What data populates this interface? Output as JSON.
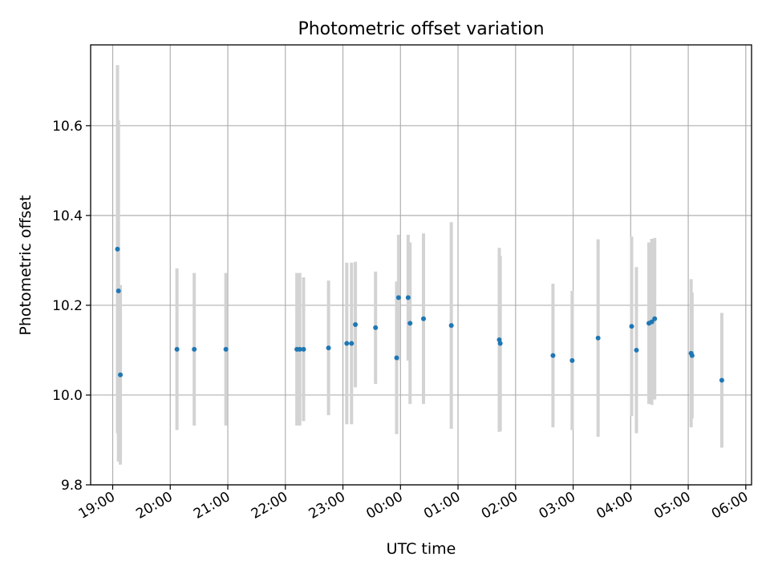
{
  "chart_data": {
    "type": "scatter",
    "title": "Photometric offset variation",
    "xlabel": "UTC time",
    "ylabel": "Photometric offset",
    "x_axis_type": "time",
    "x_start_date": "2024-01-01",
    "xlim": [
      "2024-01-01T18:37",
      "2024-01-02T06:06"
    ],
    "ylim": [
      9.8,
      10.78
    ],
    "x_ticks": [
      {
        "time": "2024-01-01T19:00",
        "label": "19:00"
      },
      {
        "time": "2024-01-01T20:00",
        "label": "20:00"
      },
      {
        "time": "2024-01-01T21:00",
        "label": "21:00"
      },
      {
        "time": "2024-01-01T22:00",
        "label": "22:00"
      },
      {
        "time": "2024-01-01T23:00",
        "label": "23:00"
      },
      {
        "time": "2024-01-02T00:00",
        "label": "00:00"
      },
      {
        "time": "2024-01-02T01:00",
        "label": "01:00"
      },
      {
        "time": "2024-01-02T02:00",
        "label": "02:00"
      },
      {
        "time": "2024-01-02T03:00",
        "label": "03:00"
      },
      {
        "time": "2024-01-02T04:00",
        "label": "04:00"
      },
      {
        "time": "2024-01-02T05:00",
        "label": "05:00"
      },
      {
        "time": "2024-01-02T06:00",
        "label": "06:00"
      }
    ],
    "y_ticks": [
      9.8,
      10.0,
      10.2,
      10.4,
      10.6
    ],
    "y_tick_labels": [
      "9.8",
      "10.0",
      "10.2",
      "10.4",
      "10.6"
    ],
    "grid": true,
    "legend": "none",
    "colors": {
      "point": "#1f77b4",
      "errorbar": "#d3d3d3",
      "grid": "#b0b0b0"
    },
    "points": [
      {
        "time": "2024-01-01T19:05",
        "y": 10.325,
        "err": 0.41
      },
      {
        "time": "2024-01-01T19:06",
        "y": 10.232,
        "err": 0.38
      },
      {
        "time": "2024-01-01T19:08",
        "y": 10.045,
        "err": 0.2
      },
      {
        "time": "2024-01-01T20:07",
        "y": 10.102,
        "err": 0.18
      },
      {
        "time": "2024-01-01T20:25",
        "y": 10.102,
        "err": 0.17
      },
      {
        "time": "2024-01-01T20:58",
        "y": 10.102,
        "err": 0.17
      },
      {
        "time": "2024-01-01T22:12",
        "y": 10.102,
        "err": 0.17
      },
      {
        "time": "2024-01-01T22:15",
        "y": 10.102,
        "err": 0.17
      },
      {
        "time": "2024-01-01T22:19",
        "y": 10.102,
        "err": 0.16
      },
      {
        "time": "2024-01-01T22:45",
        "y": 10.105,
        "err": 0.15
      },
      {
        "time": "2024-01-01T23:04",
        "y": 10.115,
        "err": 0.18
      },
      {
        "time": "2024-01-01T23:09",
        "y": 10.115,
        "err": 0.18
      },
      {
        "time": "2024-01-01T23:13",
        "y": 10.157,
        "err": 0.14
      },
      {
        "time": "2024-01-01T23:34",
        "y": 10.15,
        "err": 0.125
      },
      {
        "time": "2024-01-01T23:56",
        "y": 10.083,
        "err": 0.17
      },
      {
        "time": "2024-01-01T23:58",
        "y": 10.217,
        "err": 0.14
      },
      {
        "time": "2024-01-02T00:08",
        "y": 10.217,
        "err": 0.14
      },
      {
        "time": "2024-01-02T00:10",
        "y": 10.16,
        "err": 0.18
      },
      {
        "time": "2024-01-02T00:24",
        "y": 10.17,
        "err": 0.19
      },
      {
        "time": "2024-01-02T00:53",
        "y": 10.155,
        "err": 0.23
      },
      {
        "time": "2024-01-02T01:43",
        "y": 10.123,
        "err": 0.205
      },
      {
        "time": "2024-01-02T01:44",
        "y": 10.115,
        "err": 0.195
      },
      {
        "time": "2024-01-02T02:39",
        "y": 10.088,
        "err": 0.16
      },
      {
        "time": "2024-01-02T02:59",
        "y": 10.077,
        "err": 0.155
      },
      {
        "time": "2024-01-02T03:26",
        "y": 10.127,
        "err": 0.22
      },
      {
        "time": "2024-01-02T04:01",
        "y": 10.153,
        "err": 0.2
      },
      {
        "time": "2024-01-02T04:06",
        "y": 10.1,
        "err": 0.185
      },
      {
        "time": "2024-01-02T04:19",
        "y": 10.16,
        "err": 0.18
      },
      {
        "time": "2024-01-02T04:22",
        "y": 10.163,
        "err": 0.185
      },
      {
        "time": "2024-01-02T04:25",
        "y": 10.17,
        "err": 0.18
      },
      {
        "time": "2024-01-02T05:03",
        "y": 10.093,
        "err": 0.165
      },
      {
        "time": "2024-01-02T05:04",
        "y": 10.088,
        "err": 0.14
      },
      {
        "time": "2024-01-02T05:35",
        "y": 10.033,
        "err": 0.15
      }
    ]
  }
}
